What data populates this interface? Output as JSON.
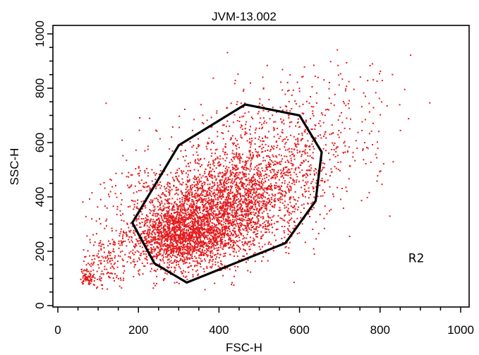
{
  "chart_data": {
    "type": "scatter",
    "title": "JVM-13.002",
    "xlabel": "FSC-H",
    "ylabel": "SSC-H",
    "xlim": [
      0,
      1000
    ],
    "ylim": [
      0,
      1000
    ],
    "x_ticks": [
      "0",
      "200",
      "400",
      "600",
      "800",
      "1000"
    ],
    "y_ticks": [
      "0",
      "200",
      "400",
      "600",
      "800",
      "1000"
    ],
    "point_color": "#e31a1c",
    "gate": {
      "label": "R2",
      "label_position": [
        870,
        160
      ],
      "color": "#000000",
      "vertices": [
        [
          185,
          305
        ],
        [
          240,
          155
        ],
        [
          320,
          85
        ],
        [
          565,
          230
        ],
        [
          640,
          385
        ],
        [
          655,
          565
        ],
        [
          600,
          700
        ],
        [
          465,
          740
        ],
        [
          300,
          590
        ]
      ]
    },
    "clusters": [
      {
        "cx": 300,
        "cy": 250,
        "sx": 60,
        "sy": 55,
        "n": 1300
      },
      {
        "cx": 380,
        "cy": 330,
        "sx": 80,
        "sy": 80,
        "n": 1500
      },
      {
        "cx": 470,
        "cy": 430,
        "sx": 90,
        "sy": 90,
        "n": 1100
      },
      {
        "cx": 560,
        "cy": 560,
        "sx": 110,
        "sy": 110,
        "n": 550
      },
      {
        "cx": 260,
        "cy": 330,
        "sx": 90,
        "sy": 140,
        "n": 450
      },
      {
        "cx": 110,
        "cy": 160,
        "sx": 40,
        "sy": 60,
        "n": 180
      },
      {
        "cx": 70,
        "cy": 105,
        "sx": 12,
        "sy": 12,
        "n": 70
      },
      {
        "cx": 650,
        "cy": 750,
        "sx": 110,
        "sy": 80,
        "n": 120
      }
    ]
  }
}
